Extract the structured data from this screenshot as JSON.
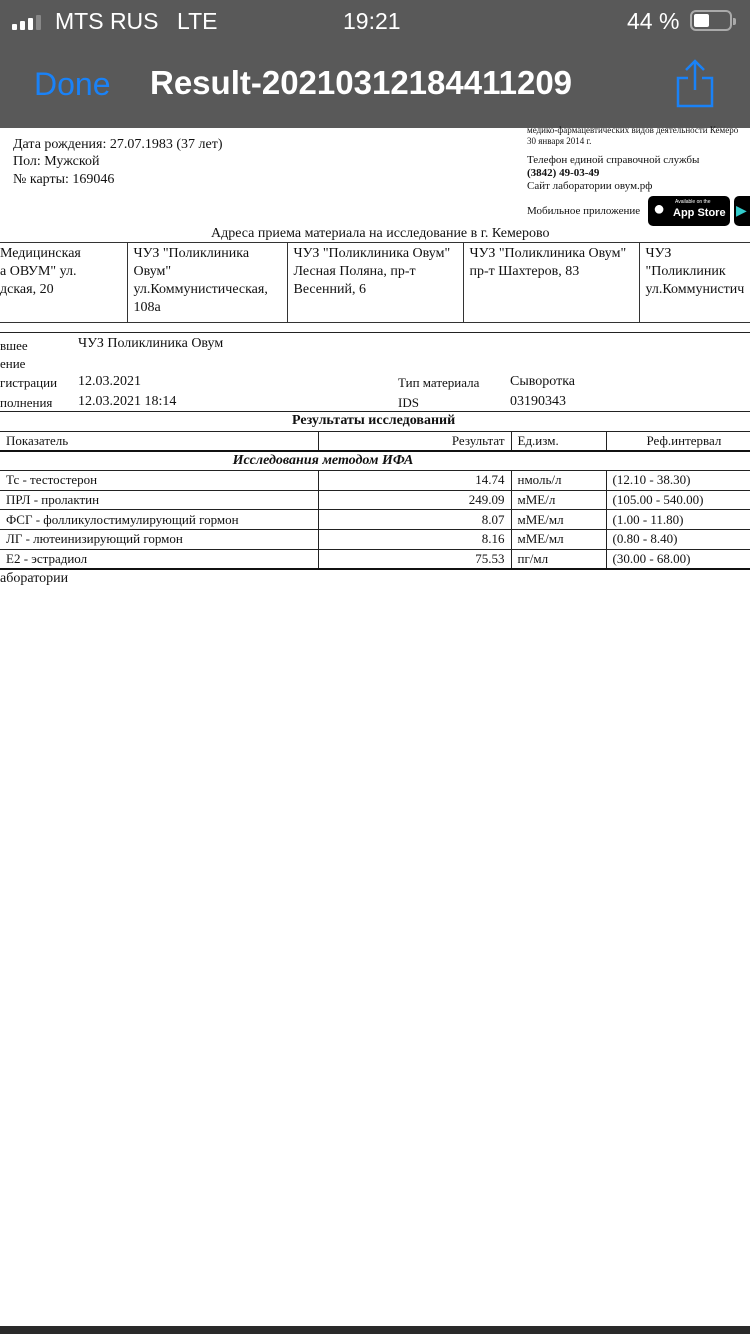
{
  "status_bar": {
    "carrier": "MTS RUS",
    "network": "LTE",
    "time": "19:21",
    "battery": "44 %",
    "battery_level": 0.44
  },
  "nav": {
    "done_label": "Done",
    "title": "Result-20210312184411209",
    "share_icon": "share-icon",
    "accent": "#1a82f7"
  },
  "patient": {
    "birth": "Дата рождения: 27.07.1983 (37 лет)",
    "sex": "Пол: Мужской",
    "card": "№ карты: 169046"
  },
  "lab_info": {
    "license_line1": "медико-фармацевтических видов деятельности Кемеро",
    "license_line2": "30 января 2014 г.",
    "phone_label": "Телефон единой справочной службы",
    "phone": "(3842) 49-03-49",
    "site": "Сайт лаборатории овум.рф",
    "app_label": "Мобильное приложение",
    "app_store": "App Store",
    "app_store_small": "Available on the"
  },
  "addresses": {
    "title": "Адреса приема материала на исследование в г. Кемерово",
    "items": [
      "Медицинская\nа ОВУМ\" ул.\nдская, 20",
      "ЧУЗ \"Поликлиника\nОвум\"\nул.Коммунистическая,\n108а",
      "ЧУЗ \"Поликлиника Овум\"\nЛесная Поляна, пр-т\nВесенний, 6",
      "ЧУЗ \"Поликлиника Овум\"\nпр-т Шахтеров, 83",
      "ЧУЗ \"Поликлиник\nул.Коммунистич"
    ]
  },
  "order": {
    "sender_label": "вшее\nение",
    "sender": "ЧУЗ Поликлиника Овум",
    "reg_label": "гистрации",
    "reg_date": "12.03.2021",
    "done_label": "полнения",
    "done_date": "12.03.2021 18:14",
    "material_label": "Тип материала",
    "material": "Сыворотка",
    "ids_label": "IDS",
    "ids": "03190343"
  },
  "results": {
    "title": "Результаты исследований",
    "headers": [
      "Показатель",
      "Результат",
      "Ед.изм.",
      "Реф.интервал"
    ],
    "section": "Исследования методом ИФА",
    "rows": [
      {
        "name": "Тс - тестостерон",
        "value": "14.74",
        "unit": "нмоль/л",
        "ref": "(12.10 - 38.30)"
      },
      {
        "name": "ПРЛ - пролактин",
        "value": "249.09",
        "unit": "мМЕ/л",
        "ref": "(105.00 - 540.00)"
      },
      {
        "name": "ФСГ - фолликулостимулирующий гормон",
        "value": "8.07",
        "unit": "мМЕ/мл",
        "ref": "(1.00 - 11.80)"
      },
      {
        "name": "ЛГ - лютеинизирующий гормон",
        "value": "8.16",
        "unit": "мМЕ/мл",
        "ref": "(0.80 - 8.40)"
      },
      {
        "name": "Е2 - эстрадиол",
        "value": "75.53",
        "unit": "пг/мл",
        "ref": "(30.00 - 68.00)"
      }
    ]
  },
  "footer_text": "аборатории"
}
